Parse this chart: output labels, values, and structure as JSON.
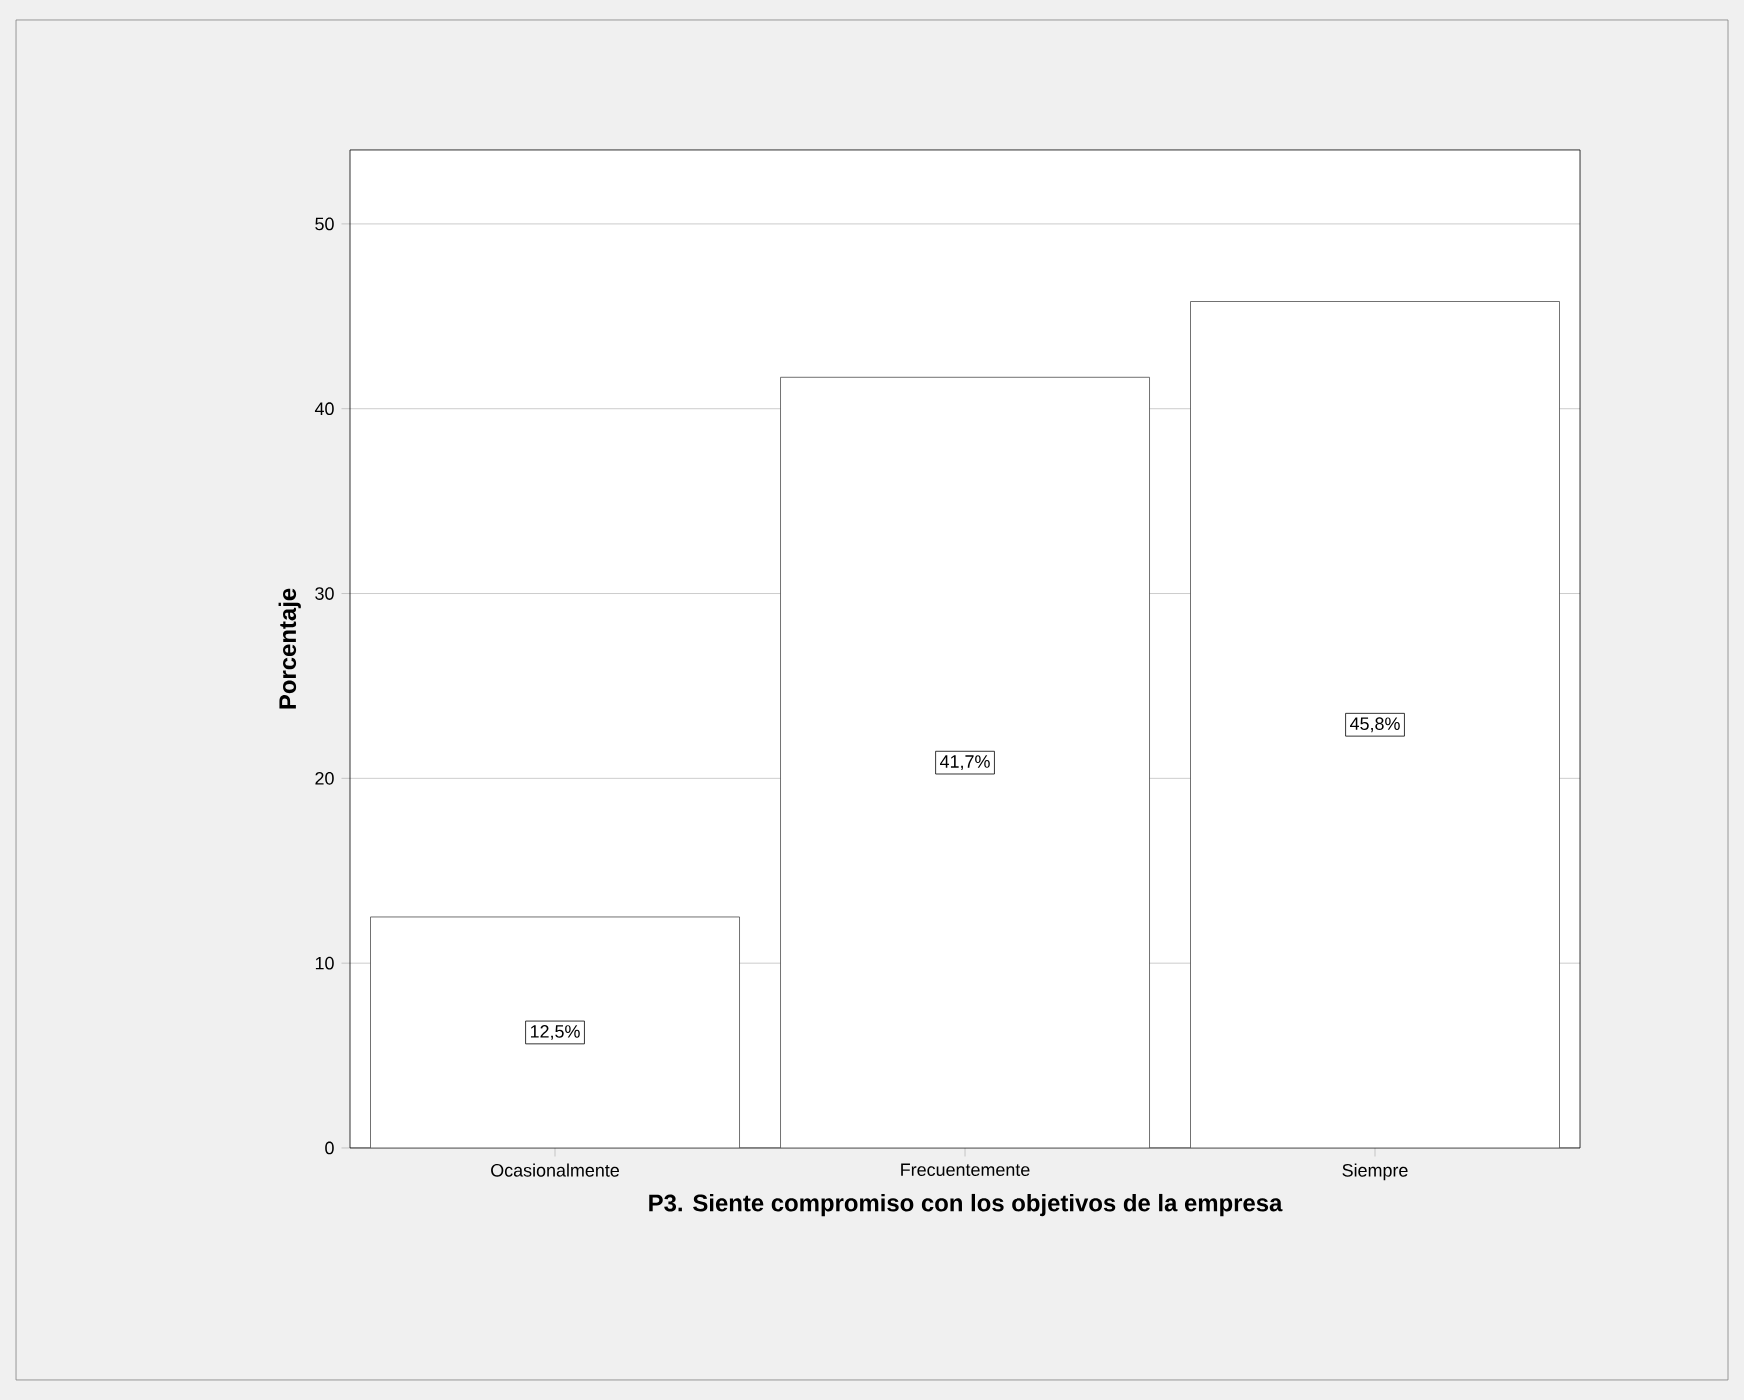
{
  "chart_data": {
    "type": "bar",
    "xlabel": "P3. Siente compromiso con los objetivos de la empresa",
    "ylabel": "Porcentaje",
    "categories": [
      "Ocasionalmente",
      "Frecuentemente",
      "Siempre"
    ],
    "values": [
      12.5,
      41.7,
      45.8
    ],
    "value_labels": [
      "12,5%",
      "41,7%",
      "45,8%"
    ],
    "color": "#ffffff",
    "ylim": [
      0,
      54
    ],
    "yticks": [
      0,
      10,
      20,
      30,
      40,
      50
    ],
    "grid": "y"
  }
}
